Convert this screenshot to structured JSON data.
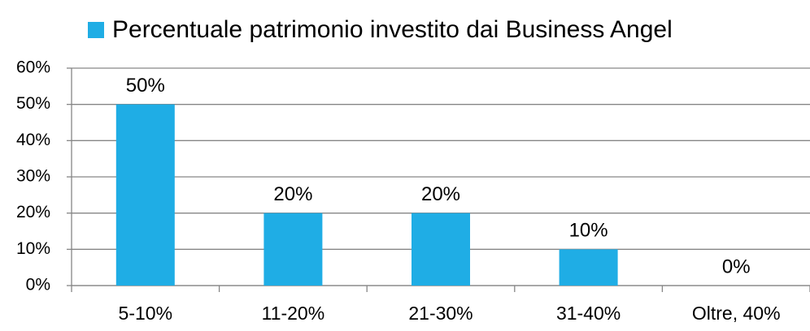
{
  "chart_data": {
    "type": "bar",
    "categories": [
      "5-10%",
      "11-20%",
      "21-30%",
      "31-40%",
      "Oltre, 40%"
    ],
    "series": [
      {
        "name": "Percentuale patrimonio investito dai Business Angel",
        "color": "#1fade5",
        "values": [
          50,
          20,
          20,
          10,
          0
        ],
        "value_labels": [
          "50%",
          "20%",
          "20%",
          "10%",
          "0%"
        ]
      }
    ],
    "ylim": [
      0,
      60
    ],
    "yticks": [
      {
        "value": 0,
        "label": "0%"
      },
      {
        "value": 10,
        "label": "10%"
      },
      {
        "value": 20,
        "label": "20%"
      },
      {
        "value": 30,
        "label": "30%"
      },
      {
        "value": 40,
        "label": "40%"
      },
      {
        "value": 50,
        "label": "50%"
      },
      {
        "value": 60,
        "label": "60%"
      }
    ],
    "grid": true,
    "legend": "top"
  }
}
